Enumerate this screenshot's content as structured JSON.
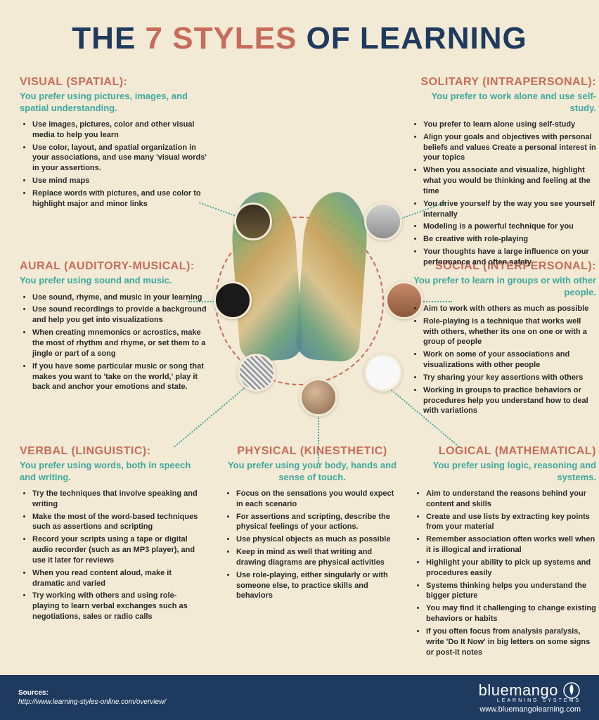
{
  "colors": {
    "background": "#f2ead4",
    "title_dark": "#1f3a5f",
    "title_accent": "#c86b5a",
    "section_heading": "#c86b5a",
    "subtitle": "#3fa8a0",
    "body_text": "#2a2a2a",
    "footer_bg": "#1f3a5f",
    "footer_text": "#ffffff",
    "connector": "#3fa8a0"
  },
  "title": {
    "part1": "THE ",
    "part2": "7 STYLES",
    "part3": " OF LEARNING"
  },
  "sections": {
    "visual": {
      "heading": "VISUAL (SPATIAL):",
      "subtitle": "You prefer using pictures, images, and spatial understanding.",
      "bullets": [
        "Use images, pictures, color and other visual media to help you learn",
        "Use color, layout, and spatial organization in your associations, and use many 'visual words' in your assertions.",
        "Use mind maps",
        "Replace words with pictures, and use color to highlight major and minor links"
      ]
    },
    "aural": {
      "heading": "AURAL (AUDITORY-MUSICAL):",
      "subtitle": "You prefer using sound and music.",
      "bullets": [
        "Use sound, rhyme, and music in your learning",
        "Use sound recordings to provide a background and help you get into visualizations",
        "When creating mnemonics or acrostics, make the most of rhythm and rhyme, or set them to a jingle or part of a song",
        "If you have some particular music or song that makes you want to 'take on the world,' play it back and anchor your emotions and state."
      ]
    },
    "verbal": {
      "heading": "VERBAL (LINGUISTIC):",
      "subtitle": "You prefer using words, both in speech and writing.",
      "bullets": [
        "Try the techniques that involve speaking and writing",
        "Make the most of the word-based techniques such as assertions and scripting",
        "Record your scripts using a tape or digital audio recorder (such as an MP3 player), and use it later for reviews",
        "When you read content aloud, make it dramatic and varied",
        "Try working with others and using role-playing to learn verbal exchanges such as negotiations, sales or radio calls"
      ]
    },
    "physical": {
      "heading": "PHYSICAL (KINESTHETIC)",
      "subtitle": "You prefer using your body, hands and sense of touch.",
      "bullets": [
        "Focus on the sensations you would expect in each scenario",
        "For assertions and scripting, describe the physical feelings of your actions.",
        "Use physical objects as much as possible",
        "Keep in mind as well that writing and drawing diagrams are physical activities",
        "Use role-playing, either singularly or with someone else, to practice skills and behaviors"
      ]
    },
    "logical": {
      "heading": "LOGICAL (MATHEMATICAL)",
      "subtitle": "You prefer using logic, reasoning and systems.",
      "bullets": [
        "Aim to understand the reasons behind your content and skills",
        "Create and use lists by extracting key points from your material",
        "Remember association often works well when it is illogical and irrational",
        "Highlight your ability to pick up systems and procedures easily",
        "Systems thinking helps you understand the bigger picture",
        "You may find it challenging to change existing behaviors or habits",
        "If you often focus from analysis paralysis, write 'Do It Now' in big letters on some signs or post-it notes"
      ]
    },
    "social": {
      "heading": "SOCIAL (INTERPERSONAL):",
      "subtitle": "You prefer to learn in groups or with other people.",
      "bullets": [
        "Aim to work with others as much as possible",
        "Role-playing is a technique that works well with others, whether its one on one or with a group of people",
        "Work on some of your associations and visualizations with other people",
        "Try sharing your key assertions with others",
        "Working in groups to practice behaviors or procedures help you understand how to deal with variations"
      ]
    },
    "solitary": {
      "heading": "SOLITARY (INTRAPERSONAL):",
      "subtitle": "You prefer to work alone and use self-study.",
      "bullets": [
        "You prefer to learn alone using self-study",
        "Align your goals and objectives with personal beliefs and values Create a personal interest in your topics",
        "When you associate and visualize, highlight what you would be thinking and feeling at the time",
        "You drive yourself by the way you see yourself internally",
        "Modeling is a powerful technique for you",
        "Be creative with role-playing",
        "Your thoughts have a large influence on your performance and often safety"
      ]
    }
  },
  "footer": {
    "sources_label": "Sources:",
    "sources_url": "http://www.learning-styles-online.com/overview/",
    "brand_name": "bluemango",
    "brand_tagline": "LEARNING SYSTEMS",
    "brand_url": "www.bluemangolearning.com"
  }
}
